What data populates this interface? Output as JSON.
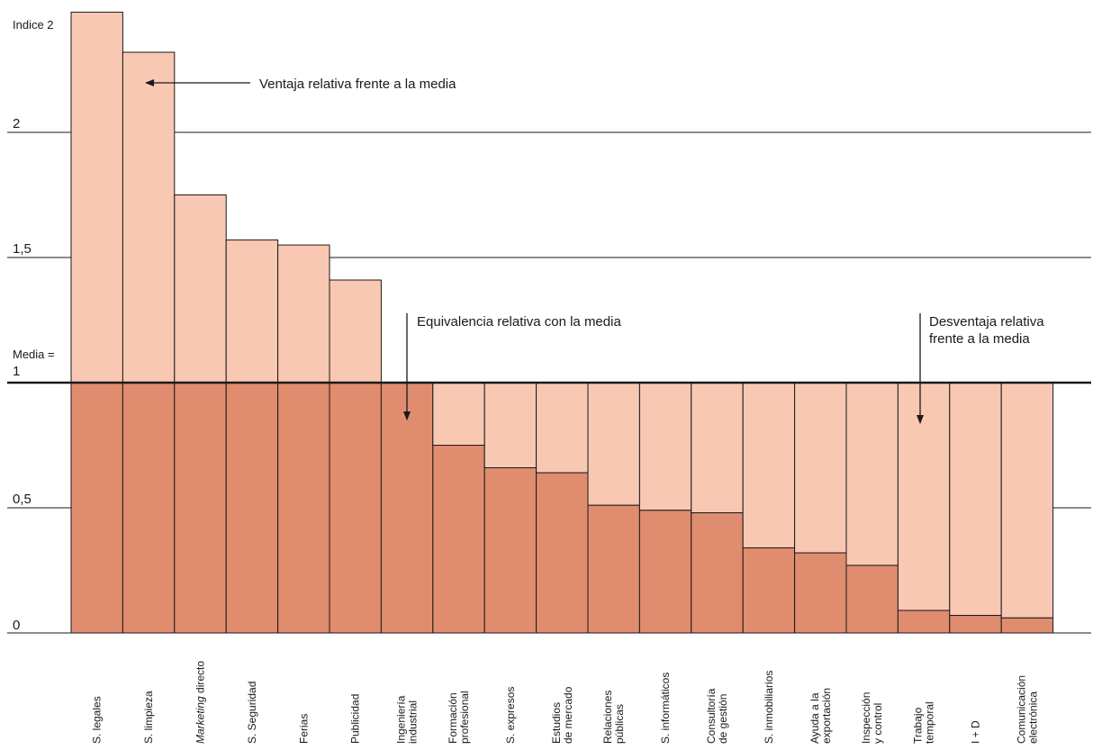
{
  "chart_data": {
    "type": "bar",
    "y_axis": {
      "top_label": "Indice 2",
      "ticks": [
        {
          "value": 0,
          "label": "0"
        },
        {
          "value": 0.5,
          "label": "0,5"
        },
        {
          "value": 1.5,
          "label": "1,5"
        },
        {
          "value": 2,
          "label": "2"
        }
      ],
      "media_label": [
        "Media =",
        "1"
      ],
      "ylim": [
        0,
        2.5
      ],
      "grid": true
    },
    "baseline": 1,
    "categories": [
      {
        "label": [
          "S. legales"
        ],
        "value": 2.48
      },
      {
        "label": [
          "S. limpieza"
        ],
        "value": 2.32
      },
      {
        "label": [
          "Marketing directo"
        ],
        "value": 1.75
      },
      {
        "label": [
          "S. Seguridad"
        ],
        "value": 1.57
      },
      {
        "label": [
          "Ferias"
        ],
        "value": 1.55
      },
      {
        "label": [
          "Publicidad"
        ],
        "value": 1.41
      },
      {
        "label": [
          "Ingeniería",
          "industrial"
        ],
        "value": 1.0
      },
      {
        "label": [
          "Formación",
          "profesional"
        ],
        "value": 0.75
      },
      {
        "label": [
          "S. expresos"
        ],
        "value": 0.66
      },
      {
        "label": [
          "Estudios",
          "de mercado"
        ],
        "value": 0.64
      },
      {
        "label": [
          "Relaciones",
          "públicas"
        ],
        "value": 0.51
      },
      {
        "label": [
          "S. informáticos"
        ],
        "value": 0.49
      },
      {
        "label": [
          "Consultoría",
          "de gestión"
        ],
        "value": 0.48
      },
      {
        "label": [
          "S. inmobiliarios"
        ],
        "value": 0.34
      },
      {
        "label": [
          "Ayuda a la",
          "exportación"
        ],
        "value": 0.32
      },
      {
        "label": [
          "Inspección",
          "y control"
        ],
        "value": 0.27
      },
      {
        "label": [
          "Trabajo",
          "temporal"
        ],
        "value": 0.09
      },
      {
        "label": [
          "I + D"
        ],
        "value": 0.07
      },
      {
        "label": [
          "Comunicación",
          "electrónica"
        ],
        "value": 0.06
      }
    ],
    "annotations": [
      {
        "text": [
          "Ventaja relativa frente a la media"
        ],
        "points_to": "S. limpieza",
        "direction": "left"
      },
      {
        "text": [
          "Equivalencia relativa con la media"
        ],
        "points_to": "Ingeniería industrial",
        "direction": "down"
      },
      {
        "text": [
          "Desventaja relativa",
          "frente a la media"
        ],
        "points_to": "Trabajo temporal",
        "direction": "down"
      }
    ],
    "colors": {
      "above_bar": "#f8c8b3",
      "below_bar": "#df8c6f",
      "bar_outline": "#1a1a1a",
      "gridline": "#1a1a1a",
      "background": "#ffffff"
    }
  }
}
